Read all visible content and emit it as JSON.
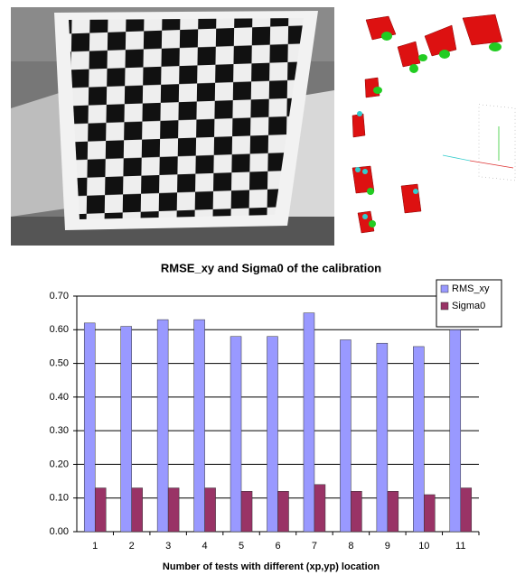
{
  "chart_data": {
    "type": "bar",
    "title": "RMSE_xy and Sigma0 of the calibration",
    "x_label": "Number of tests with different (xp,yp) location",
    "categories": [
      "1",
      "2",
      "3",
      "4",
      "5",
      "6",
      "7",
      "8",
      "9",
      "10",
      "11"
    ],
    "series": [
      {
        "name": "RMS_xy",
        "color": "#9999ff",
        "values": [
          0.62,
          0.61,
          0.63,
          0.63,
          0.58,
          0.58,
          0.65,
          0.57,
          0.56,
          0.55,
          0.6
        ]
      },
      {
        "name": "Sigma0",
        "color": "#993366",
        "values": [
          0.13,
          0.13,
          0.13,
          0.13,
          0.12,
          0.12,
          0.14,
          0.12,
          0.12,
          0.11,
          0.13
        ]
      }
    ],
    "ylim": [
      0,
      0.7
    ],
    "yticks": [
      {
        "value": 0,
        "label": "0.00"
      },
      {
        "value": 0.1,
        "label": "0.10"
      },
      {
        "value": 0.2,
        "label": "0.20"
      },
      {
        "value": 0.3,
        "label": "0.30"
      },
      {
        "value": 0.4,
        "label": "0.40"
      },
      {
        "value": 0.5,
        "label": "0.50"
      },
      {
        "value": 0.6,
        "label": "0.60"
      },
      {
        "value": 0.7,
        "label": "0.70"
      }
    ],
    "grid": true,
    "legend": "top-right"
  }
}
